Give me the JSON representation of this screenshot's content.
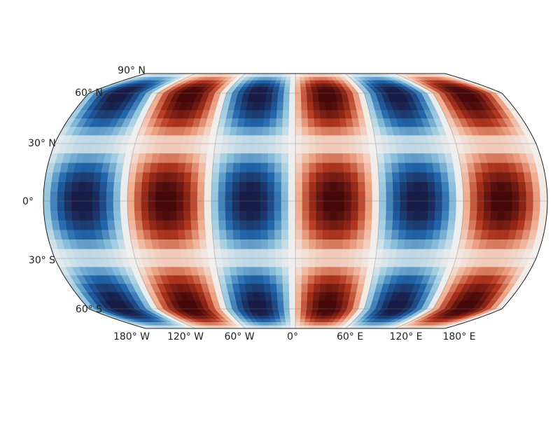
{
  "map": {
    "lat_labels": [
      "90° N",
      "60° N",
      "30° N",
      "0°",
      "30° S",
      "60° S"
    ],
    "lon_labels": [
      "180° W",
      "120° W",
      "60° W",
      "0°",
      "60° E",
      "120° E",
      "180° E"
    ]
  }
}
